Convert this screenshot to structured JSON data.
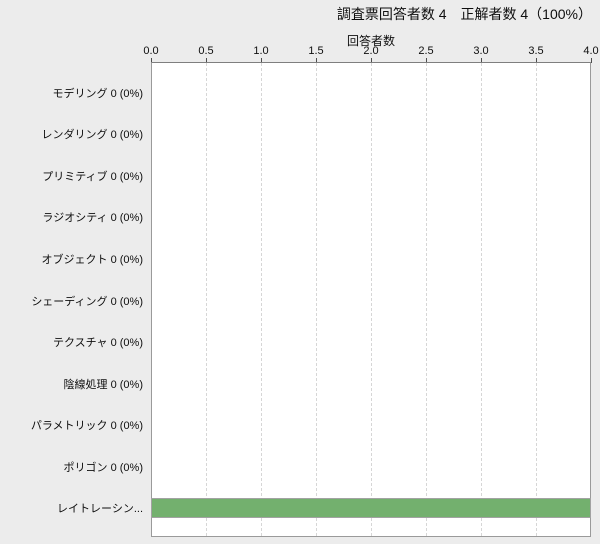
{
  "header": {
    "title": "調査票回答者数 4　正解者数 4（100%）"
  },
  "chart_data": {
    "type": "bar",
    "orientation": "horizontal",
    "title": "調査票回答者数 4　正解者数 4（100%）",
    "axis_title": "回答者数",
    "axis_position": "top",
    "xlim": [
      0.0,
      4.0
    ],
    "x_ticks": [
      "0.0",
      "0.5",
      "1.0",
      "1.5",
      "2.0",
      "2.5",
      "3.0",
      "3.5",
      "4.0"
    ],
    "grid": "vertical-dashed",
    "legend": "none",
    "categories": [
      "モデリング",
      "レンダリング",
      "プリミティブ",
      "ラジオシティ",
      "オブジェクト",
      "シェーディング",
      "テクスチャ",
      "陰線処理",
      "パラメトリック",
      "ポリゴン",
      "レイトレーシング"
    ],
    "values": [
      0,
      0,
      0,
      0,
      0,
      0,
      0,
      0,
      0,
      0,
      4
    ],
    "rows": [
      {
        "label": "モデリング 0 (0%)",
        "value": 0
      },
      {
        "label": "レンダリング 0 (0%)",
        "value": 0
      },
      {
        "label": "プリミティブ 0 (0%)",
        "value": 0
      },
      {
        "label": "ラジオシティ 0 (0%)",
        "value": 0
      },
      {
        "label": "オブジェクト 0 (0%)",
        "value": 0
      },
      {
        "label": "シェーディング 0 (0%)",
        "value": 0
      },
      {
        "label": "テクスチャ 0 (0%)",
        "value": 0
      },
      {
        "label": "陰線処理 0 (0%)",
        "value": 0
      },
      {
        "label": "パラメトリック 0 (0%)",
        "value": 0
      },
      {
        "label": "ポリゴン 0 (0%)",
        "value": 0
      },
      {
        "label": "レイトレーシン...",
        "value": 4
      }
    ]
  },
  "colors": {
    "background": "#ececec",
    "plot_background": "#ffffff",
    "plot_border": "#9a9a9a",
    "gridline": "#d6d6d6",
    "tick": "#4d4d4d",
    "text": "#0e0e0e",
    "bar_fill": "#73b06e",
    "bar_border": "#a2a2a2"
  }
}
